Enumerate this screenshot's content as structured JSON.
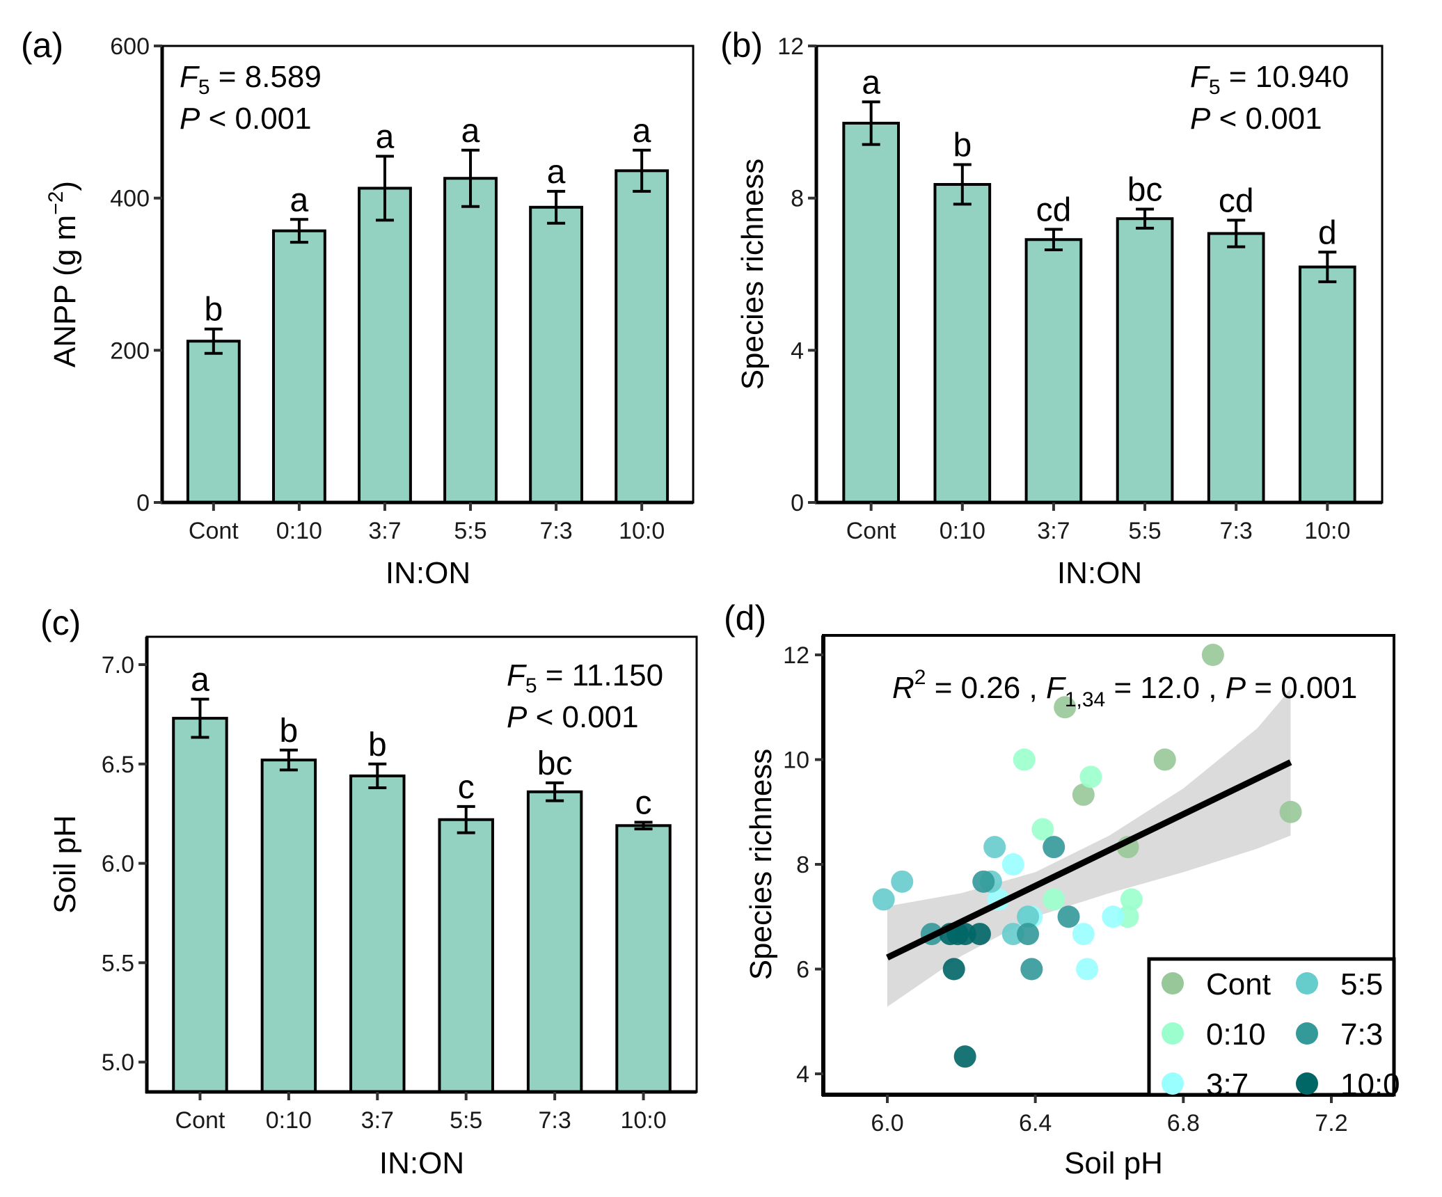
{
  "figure": {
    "bar_fill": "#93d1c0",
    "ci_fill": "#d9d9d9",
    "panel_tags": [
      "(a)",
      "(b)",
      "(c)",
      "(d)"
    ]
  },
  "chart_data": [
    {
      "panel": "(a)",
      "type": "bar",
      "title": "",
      "xlabel": "IN:ON",
      "ylabel": "ANPP (g m⁻²)",
      "ylabel_parts": {
        "main": "ANPP ",
        "open": "(",
        "unit": "g m",
        "sup": "−2",
        "close": ")"
      },
      "categories": [
        "Cont",
        "0:10",
        "3:7",
        "5:5",
        "7:3",
        "10:0"
      ],
      "values": [
        212,
        357,
        413,
        426,
        388,
        436
      ],
      "errors": [
        16,
        15,
        42,
        37,
        21,
        27
      ],
      "letters": [
        "b",
        "a",
        "a",
        "a",
        "a",
        "a"
      ],
      "ylim": [
        0,
        600
      ],
      "yticks": [
        0,
        200,
        400,
        600
      ],
      "ytick_labels": [
        "0",
        "200",
        "400",
        "600"
      ],
      "stats": {
        "F_label": "F",
        "F_sub": "5",
        "F_value": " = 8.589",
        "P_label": "P",
        "P_value": " < 0.001",
        "placement": "top-left"
      }
    },
    {
      "panel": "(b)",
      "type": "bar",
      "title": "",
      "xlabel": "IN:ON",
      "ylabel": "Species richness",
      "categories": [
        "Cont",
        "0:10",
        "3:7",
        "5:5",
        "7:3",
        "10:0"
      ],
      "values": [
        9.97,
        8.36,
        6.91,
        7.46,
        7.07,
        6.19
      ],
      "errors": [
        0.56,
        0.52,
        0.27,
        0.25,
        0.35,
        0.39
      ],
      "letters": [
        "a",
        "b",
        "cd",
        "bc",
        "cd",
        "d"
      ],
      "ylim": [
        0,
        12
      ],
      "yticks": [
        0,
        4,
        8,
        12
      ],
      "ytick_labels": [
        "0",
        "4",
        "8",
        "12"
      ],
      "stats": {
        "F_label": "F",
        "F_sub": "5",
        "F_value": " = 10.940",
        "P_label": "P",
        "P_value": " < 0.001",
        "placement": "top-right"
      }
    },
    {
      "panel": "(c)",
      "type": "bar",
      "title": "",
      "xlabel": "IN:ON",
      "ylabel": "Soil pH",
      "categories": [
        "Cont",
        "0:10",
        "3:7",
        "5:5",
        "7:3",
        "10:0"
      ],
      "values": [
        6.73,
        6.52,
        6.44,
        6.22,
        6.36,
        6.19
      ],
      "errors": [
        0.096,
        0.05,
        0.06,
        0.066,
        0.045,
        0.017
      ],
      "letters": [
        "a",
        "b",
        "b",
        "c",
        "bc",
        "c"
      ],
      "ylim": [
        4.85,
        7.14
      ],
      "yticks": [
        5.0,
        5.5,
        6.0,
        6.5,
        7.0
      ],
      "ytick_labels": [
        "5.0",
        "5.5",
        "6.0",
        "6.5",
        "7.0"
      ],
      "stats": {
        "F_label": "F",
        "F_sub": "5",
        "F_value": " = 11.150",
        "P_label": "P",
        "P_value": " < 0.001",
        "placement": "top-right"
      }
    },
    {
      "panel": "(d)",
      "type": "scatter",
      "title": "",
      "xlabel": "Soil pH",
      "ylabel": "Species richness",
      "xlim": [
        5.83,
        7.37
      ],
      "ylim": [
        3.6,
        12.37
      ],
      "xticks": [
        6.0,
        6.4,
        6.8,
        7.2
      ],
      "xtick_labels": [
        "6.0",
        "6.4",
        "6.8",
        "7.2"
      ],
      "yticks": [
        4,
        6,
        8,
        10,
        12
      ],
      "ytick_labels": [
        "4",
        "6",
        "8",
        "10",
        "12"
      ],
      "grid": false,
      "legend": {
        "placement": "bottom-right",
        "columns": 2
      },
      "series": [
        {
          "name": "Cont",
          "color": "#98c899",
          "x": [
            6.88,
            6.48,
            6.75,
            6.53,
            7.09,
            6.65
          ],
          "y": [
            12.0,
            11.0,
            10.0,
            9.33,
            9.0,
            8.33
          ]
        },
        {
          "name": "0:10",
          "color": "#9affcc",
          "x": [
            6.37,
            6.55,
            6.42,
            6.66,
            6.65,
            6.45
          ],
          "y": [
            10.0,
            9.67,
            8.67,
            7.33,
            7.0,
            7.33
          ]
        },
        {
          "name": "3:7",
          "color": "#99ffff",
          "x": [
            6.34,
            6.39,
            6.61,
            6.53,
            6.54,
            6.3
          ],
          "y": [
            8.0,
            7.0,
            7.0,
            6.67,
            6.0,
            7.33
          ]
        },
        {
          "name": "5:5",
          "color": "#66cccc",
          "x": [
            5.99,
            6.04,
            6.29,
            6.28,
            6.38,
            6.34
          ],
          "y": [
            7.33,
            7.67,
            8.33,
            7.67,
            7.0,
            6.67
          ]
        },
        {
          "name": "7:3",
          "color": "#339999",
          "x": [
            6.45,
            6.26,
            6.49,
            6.38,
            6.39,
            6.12
          ],
          "y": [
            8.33,
            7.67,
            7.0,
            6.67,
            6.0,
            6.67
          ]
        },
        {
          "name": "10:0",
          "color": "#006666",
          "x": [
            6.18,
            6.21,
            6.17,
            6.21,
            6.25,
            6.19
          ],
          "y": [
            6.0,
            4.33,
            6.67,
            6.67,
            6.67,
            6.67
          ]
        }
      ],
      "fit": {
        "x": [
          6.0,
          7.09
        ],
        "y": [
          6.22,
          9.95
        ]
      },
      "ci_band": {
        "x": [
          6.0,
          6.2,
          6.4,
          6.6,
          6.8,
          7.0,
          7.09
        ],
        "upper": [
          7.2,
          7.45,
          7.85,
          8.55,
          9.45,
          10.6,
          11.35
        ],
        "lower": [
          5.28,
          6.25,
          7.0,
          7.45,
          7.85,
          8.3,
          8.55
        ]
      },
      "annotation": {
        "R_label": "R",
        "R_sup": "2",
        "R_value": " = 0.26 , ",
        "F_label": "F",
        "F_sub": "1,34",
        "F_value": " = 12.0 , ",
        "P_label": "P",
        "P_value": " = 0.001"
      }
    }
  ]
}
